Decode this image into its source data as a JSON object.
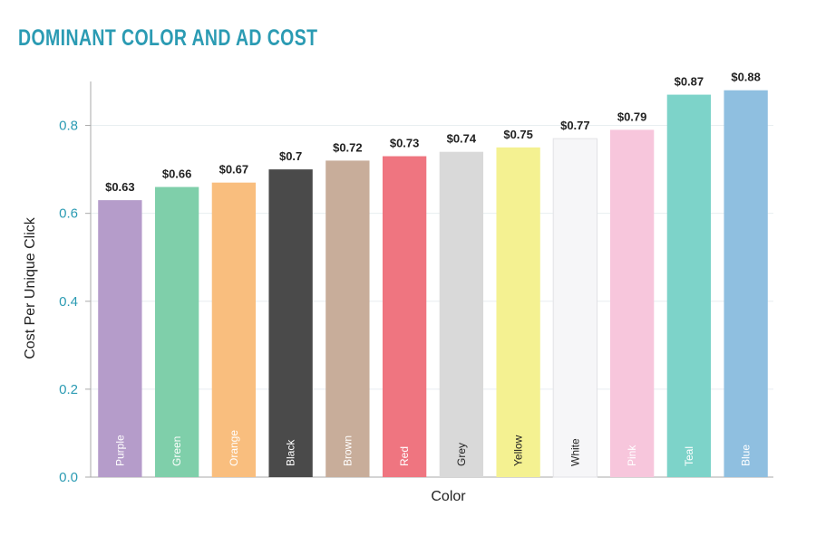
{
  "chart_data": {
    "type": "bar",
    "title": "DOMINANT COLOR AND AD COST",
    "xlabel": "Color",
    "ylabel": "Cost Per Unique Click",
    "categories": [
      "Purple",
      "Green",
      "Orange",
      "Black",
      "Brown",
      "Red",
      "Grey",
      "Yellow",
      "White",
      "Pink",
      "Teal",
      "Blue"
    ],
    "values": [
      0.63,
      0.66,
      0.67,
      0.7,
      0.72,
      0.73,
      0.74,
      0.75,
      0.77,
      0.79,
      0.87,
      0.88
    ],
    "data_labels": [
      "$0.63",
      "$0.66",
      "$0.67",
      "$0.7",
      "$0.72",
      "$0.73",
      "$0.74",
      "$0.75",
      "$0.77",
      "$0.79",
      "$0.87",
      "$0.88"
    ],
    "bar_colors": [
      "#b59cca",
      "#7fcfaa",
      "#f9be7e",
      "#4a4a4a",
      "#c8ad9a",
      "#ef7580",
      "#d9d9d9",
      "#f4f191",
      "#f6f6f8",
      "#f7c6dc",
      "#7dd3c9",
      "#8fbfe0"
    ],
    "bar_text_colors": [
      "#ffffff",
      "#ffffff",
      "#ffffff",
      "#ffffff",
      "#ffffff",
      "#ffffff",
      "#222222",
      "#222222",
      "#222222",
      "#ffffff",
      "#ffffff",
      "#ffffff"
    ],
    "yticks": [
      "0.0",
      "0.2",
      "0.4",
      "0.6",
      "0.8"
    ],
    "ylim": [
      0,
      0.9
    ],
    "grid": true,
    "colors": {
      "title": "#2b9bb3",
      "ticks": "#2b9bb3",
      "grid": "#e8eef0",
      "axis": "#aaaaaa"
    }
  }
}
